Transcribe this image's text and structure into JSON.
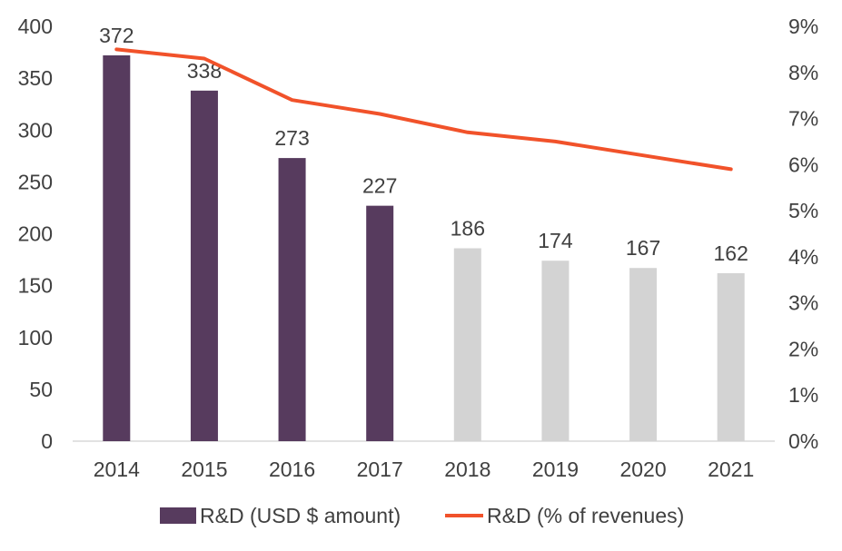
{
  "chart_data": {
    "type": "bar",
    "categories": [
      "2014",
      "2015",
      "2016",
      "2017",
      "2018",
      "2019",
      "2020",
      "2021"
    ],
    "series": [
      {
        "name": "R&D (USD $ amount)",
        "type": "bar",
        "axis": "left",
        "values": [
          372,
          338,
          273,
          227,
          186,
          174,
          167,
          162
        ],
        "color": "#573B5E",
        "forecast_color": "#D3D3D3",
        "forecast_from_index": 4
      },
      {
        "name": "R&D (% of revenues)",
        "type": "line",
        "axis": "right",
        "values": [
          8.5,
          8.3,
          7.4,
          7.1,
          6.7,
          6.5,
          6.2,
          5.9
        ],
        "unit": "%",
        "color": "#F1522A"
      }
    ],
    "data_labels": [
      "372",
      "338",
      "273",
      "227",
      "186",
      "174",
      "167",
      "162"
    ],
    "y_left": {
      "ticks": [
        "0",
        "50",
        "100",
        "150",
        "200",
        "250",
        "300",
        "350",
        "400"
      ],
      "ylim": [
        0,
        400
      ]
    },
    "y_right": {
      "ticks": [
        "0%",
        "1%",
        "2%",
        "3%",
        "4%",
        "5%",
        "6%",
        "7%",
        "8%",
        "9%"
      ],
      "ylim": [
        0,
        9
      ]
    },
    "grid": false,
    "legend_position": "bottom"
  }
}
